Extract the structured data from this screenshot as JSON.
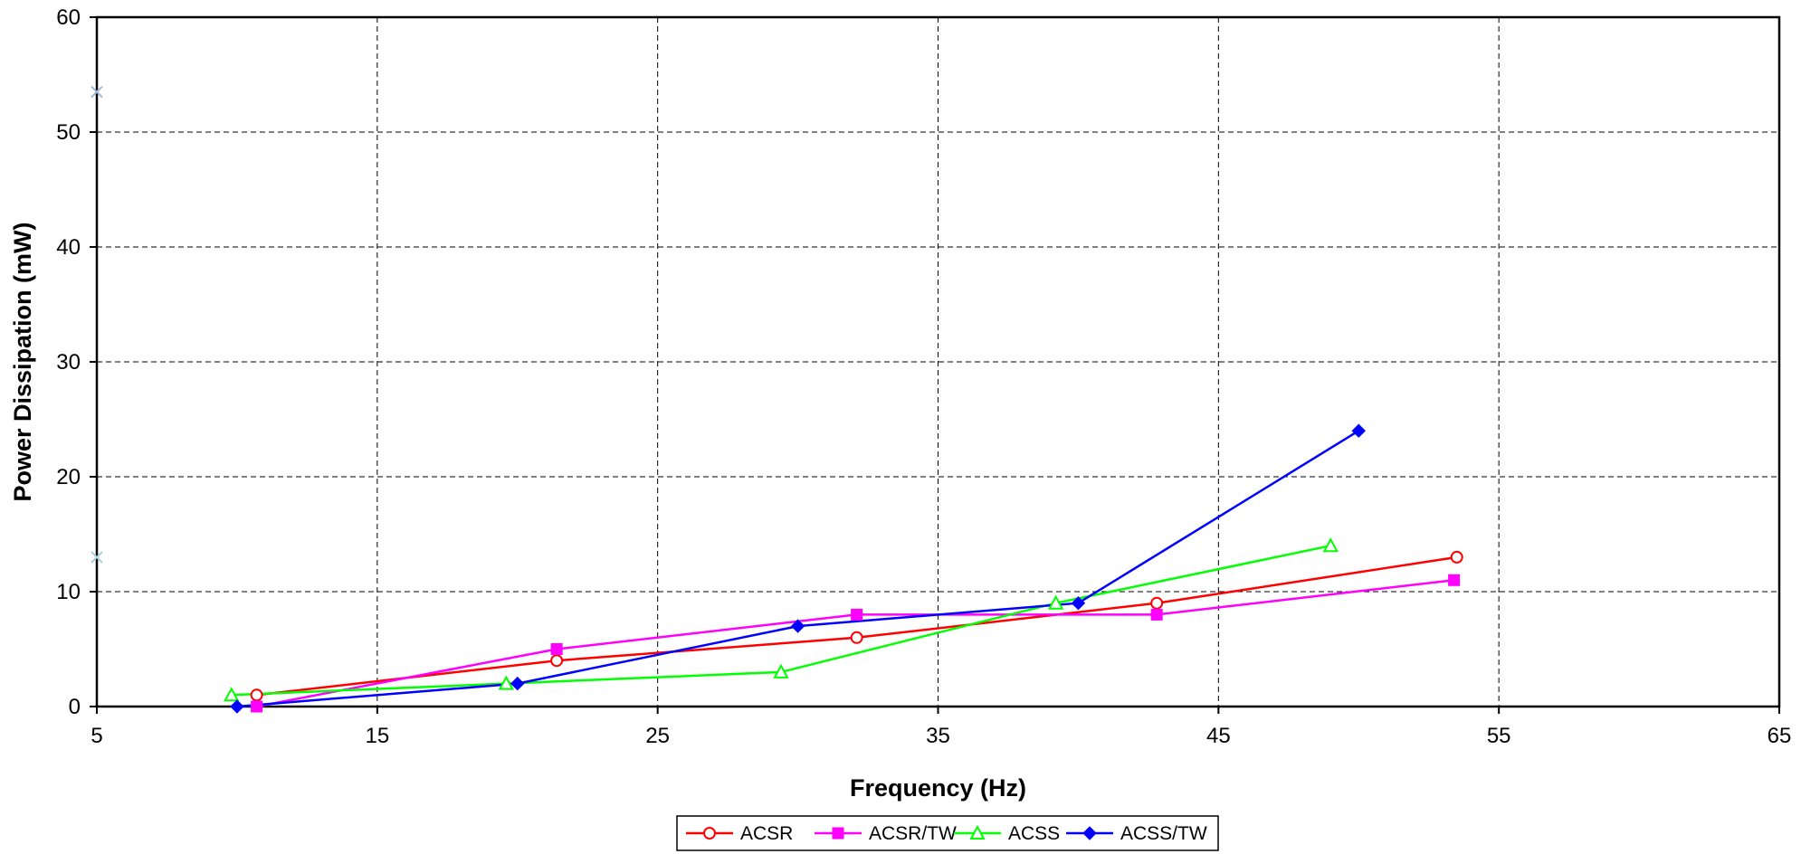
{
  "chart_data": {
    "type": "line",
    "title": "",
    "xlabel": "Frequency (Hz)",
    "ylabel": "Power Dissipation (mW)",
    "xlim": [
      5,
      65
    ],
    "ylim": [
      0,
      60
    ],
    "xticks": [
      5,
      15,
      25,
      35,
      45,
      55,
      65
    ],
    "yticks": [
      0,
      10,
      20,
      30,
      40,
      50,
      60
    ],
    "grid": true,
    "legend_position": "bottom",
    "series": [
      {
        "name": "ACSR",
        "color": "#ff0000",
        "marker": "circle-open",
        "x": [
          10.7,
          21.4,
          32.1,
          42.8,
          53.5
        ],
        "y": [
          1,
          4,
          6,
          9,
          13
        ]
      },
      {
        "name": "ACSR/TW",
        "color": "#ff00ff",
        "marker": "square-filled",
        "x": [
          10.7,
          21.4,
          32.1,
          42.8,
          53.4
        ],
        "y": [
          0,
          5,
          8,
          8,
          11
        ]
      },
      {
        "name": "ACSS",
        "color": "#00ff00",
        "marker": "triangle-open",
        "x": [
          9.8,
          19.6,
          29.4,
          39.2,
          49
        ],
        "y": [
          1,
          2,
          3,
          9,
          14
        ]
      },
      {
        "name": "ACSS/TW",
        "color": "#0000ff",
        "marker": "diamond-filled",
        "x": [
          10,
          20,
          30,
          40,
          50
        ],
        "y": [
          0,
          2,
          7,
          9,
          24
        ]
      }
    ],
    "stray_markers": [
      {
        "x": 5,
        "y": 53.5,
        "color": "#9fb8d8"
      },
      {
        "x": 5,
        "y": 13,
        "color": "#a8d0d8"
      }
    ]
  }
}
